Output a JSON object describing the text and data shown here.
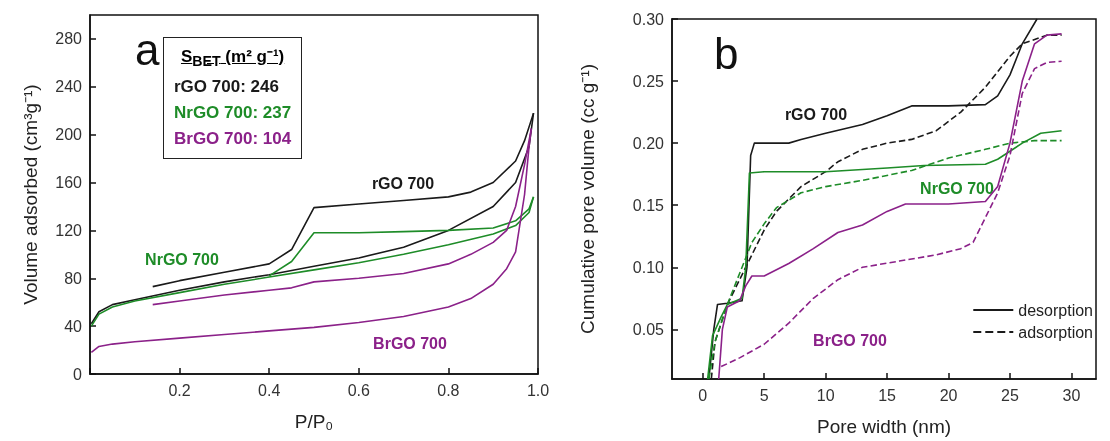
{
  "chart_data": [
    {
      "type": "line",
      "xlabel": "P/P₀",
      "ylabel": "Volume adsorbed (cm³g⁻¹)",
      "marker": "none",
      "xlim": [
        0,
        1.0
      ],
      "xticks": [
        {
          "value": 0,
          "label": null
        },
        0.2,
        0.4,
        0.6,
        0.8,
        {
          "value": 1.0,
          "label": "1.0"
        }
      ],
      "ylim": [
        0,
        300
      ],
      "yticks": [
        0,
        40,
        80,
        120,
        160,
        200,
        240,
        280
      ],
      "annotations": [
        "a",
        "S$_{BET}$ (m² g⁻¹)",
        "rGO 700: 246",
        "NrGO 700:  237",
        "BrGO 700: 104",
        "rGO 700",
        "NrGO 700",
        "BrGO 700"
      ],
      "series": [
        {
          "color": "#1a1a1a",
          "x": [
            0.003,
            0.02,
            0.05,
            0.1,
            0.2,
            0.3,
            0.4,
            0.5,
            0.6,
            0.7,
            0.8,
            0.9,
            0.95,
            0.98,
            0.99
          ],
          "values": [
            42,
            52,
            58,
            62,
            70,
            77,
            83,
            90,
            97,
            106,
            120,
            140,
            160,
            190,
            218
          ]
        },
        {
          "color": "#1a1a1a",
          "x": [
            0.14,
            0.2,
            0.3,
            0.4,
            0.45,
            0.5,
            0.6,
            0.7,
            0.8,
            0.85,
            0.9,
            0.95,
            0.97,
            0.99
          ],
          "values": [
            73,
            78,
            85,
            92,
            104,
            139,
            142,
            145,
            148,
            152,
            160,
            178,
            195,
            218
          ]
        },
        {
          "color": "#1e8c28",
          "x": [
            0.003,
            0.02,
            0.05,
            0.1,
            0.2,
            0.3,
            0.4,
            0.5,
            0.6,
            0.7,
            0.8,
            0.9,
            0.95,
            0.98,
            0.99
          ],
          "values": [
            40,
            50,
            56,
            61,
            68,
            75,
            81,
            87,
            93,
            100,
            108,
            117,
            124,
            135,
            148
          ]
        },
        {
          "color": "#1e8c28",
          "x": [
            0.4,
            0.45,
            0.5,
            0.6,
            0.7,
            0.8,
            0.9,
            0.95,
            0.98,
            0.99
          ],
          "values": [
            82,
            94,
            118,
            118,
            119,
            120,
            122,
            128,
            138,
            148
          ]
        },
        {
          "color": "#8b2189",
          "x": [
            0.003,
            0.02,
            0.05,
            0.1,
            0.2,
            0.3,
            0.4,
            0.5,
            0.6,
            0.7,
            0.8,
            0.85,
            0.9,
            0.93,
            0.95,
            0.97,
            0.98,
            0.985
          ],
          "values": [
            18,
            23,
            25,
            27,
            30,
            33,
            36,
            39,
            43,
            48,
            56,
            63,
            75,
            88,
            102,
            150,
            190,
            205
          ]
        },
        {
          "color": "#8b2189",
          "x": [
            0.14,
            0.2,
            0.3,
            0.4,
            0.45,
            0.5,
            0.6,
            0.7,
            0.8,
            0.85,
            0.9,
            0.93,
            0.95,
            0.97,
            0.985
          ],
          "values": [
            58,
            61,
            66,
            70,
            72,
            77,
            80,
            84,
            92,
            100,
            110,
            120,
            140,
            175,
            205
          ]
        }
      ]
    },
    {
      "type": "line",
      "xlabel": "Pore width (nm)",
      "ylabel": "Cumulative pore volume (cc g⁻¹)",
      "marker": "none",
      "legend": "bottom right",
      "xlim": [
        -2.5,
        32
      ],
      "xticks": [
        0,
        5,
        10,
        15,
        20,
        25,
        30
      ],
      "ylim": [
        0.01,
        0.3
      ],
      "yticks": [
        0.05,
        {
          "value": 0.1,
          "label": "0.10"
        },
        0.15,
        {
          "value": 0.2,
          "label": "0.20"
        },
        0.25,
        {
          "value": 0.3,
          "label": "0.30"
        }
      ],
      "annotations": [
        "b",
        "rGO 700",
        "NrGO 700",
        "BrGO 700"
      ],
      "series": [
        {
          "name": "desorption",
          "color": "#1a1a1a",
          "line_style": "solid",
          "x": [
            0.5,
            0.9,
            1.2,
            2,
            3.2,
            3.6,
            3.9,
            4.2,
            7,
            8,
            10,
            13,
            15,
            17,
            20,
            23,
            24,
            25,
            26,
            27.2
          ],
          "values": [
            0.01,
            0.05,
            0.07,
            0.071,
            0.073,
            0.1,
            0.19,
            0.2,
            0.2,
            0.203,
            0.208,
            0.215,
            0.222,
            0.23,
            0.23,
            0.231,
            0.238,
            0.255,
            0.28,
            0.3
          ]
        },
        {
          "name": "adsorption",
          "color": "#1a1a1a",
          "line_style": "dashed",
          "x": [
            0.7,
            1,
            2,
            3,
            4,
            5,
            6,
            7,
            8,
            10,
            11,
            13,
            15,
            17,
            19,
            21,
            23,
            25,
            26,
            28,
            29.2
          ],
          "values": [
            0.01,
            0.04,
            0.07,
            0.09,
            0.11,
            0.13,
            0.145,
            0.155,
            0.165,
            0.177,
            0.185,
            0.195,
            0.2,
            0.203,
            0.21,
            0.225,
            0.245,
            0.27,
            0.28,
            0.287,
            0.287
          ]
        },
        {
          "color": "#1e8c28",
          "line_style": "solid",
          "x": [
            0.4,
            0.8,
            1.5,
            2,
            3.2,
            3.5,
            3.8,
            5,
            10,
            15,
            18,
            23,
            24,
            26,
            27.5,
            29.2
          ],
          "values": [
            0.01,
            0.045,
            0.06,
            0.07,
            0.075,
            0.1,
            0.176,
            0.177,
            0.177,
            0.18,
            0.182,
            0.183,
            0.187,
            0.2,
            0.208,
            0.21
          ]
        },
        {
          "color": "#1e8c28",
          "line_style": "dashed",
          "x": [
            0.5,
            1,
            2,
            3,
            4,
            5,
            6,
            8,
            10,
            13,
            17,
            20,
            23,
            25,
            27,
            29.2
          ],
          "values": [
            0.01,
            0.04,
            0.07,
            0.095,
            0.12,
            0.135,
            0.148,
            0.16,
            0.165,
            0.17,
            0.178,
            0.188,
            0.195,
            0.2,
            0.202,
            0.202
          ]
        },
        {
          "color": "#8b2189",
          "line_style": "solid",
          "x": [
            1.3,
            1.6,
            2,
            3,
            3.5,
            4,
            5,
            7,
            9,
            11,
            13,
            15,
            16.5,
            20,
            23,
            24,
            25,
            26,
            27,
            28,
            29.2
          ],
          "values": [
            0.01,
            0.05,
            0.068,
            0.073,
            0.085,
            0.093,
            0.093,
            0.103,
            0.115,
            0.128,
            0.134,
            0.145,
            0.151,
            0.151,
            0.153,
            0.165,
            0.2,
            0.25,
            0.28,
            0.287,
            0.288
          ]
        },
        {
          "color": "#8b2189",
          "line_style": "dashed",
          "x": [
            1.5,
            3,
            5,
            7,
            9,
            11,
            13,
            16,
            19,
            21,
            22,
            23,
            24,
            25,
            26,
            27,
            28,
            29.2
          ],
          "values": [
            0.02,
            0.027,
            0.038,
            0.055,
            0.075,
            0.09,
            0.1,
            0.105,
            0.11,
            0.115,
            0.12,
            0.14,
            0.16,
            0.19,
            0.24,
            0.26,
            0.265,
            0.266
          ]
        }
      ]
    }
  ]
}
